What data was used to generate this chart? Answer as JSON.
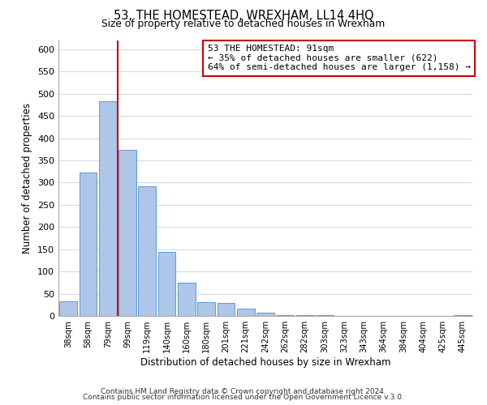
{
  "title": "53, THE HOMESTEAD, WREXHAM, LL14 4HQ",
  "subtitle": "Size of property relative to detached houses in Wrexham",
  "xlabel": "Distribution of detached houses by size in Wrexham",
  "ylabel": "Number of detached properties",
  "bin_labels": [
    "38sqm",
    "58sqm",
    "79sqm",
    "99sqm",
    "119sqm",
    "140sqm",
    "160sqm",
    "180sqm",
    "201sqm",
    "221sqm",
    "242sqm",
    "262sqm",
    "282sqm",
    "303sqm",
    "323sqm",
    "343sqm",
    "364sqm",
    "384sqm",
    "404sqm",
    "425sqm",
    "445sqm"
  ],
  "bar_heights": [
    32,
    323,
    483,
    374,
    292,
    144,
    75,
    31,
    29,
    17,
    8,
    2,
    1,
    1,
    0,
    0,
    0,
    0,
    0,
    0,
    2
  ],
  "bar_color": "#aec6e8",
  "bar_edge_color": "#5b9bd5",
  "vline_color": "#cc0000",
  "annotation_text": "53 THE HOMESTEAD: 91sqm\n← 35% of detached houses are smaller (622)\n64% of semi-detached houses are larger (1,158) →",
  "annotation_box_color": "#ffffff",
  "annotation_box_edge_color": "#cc0000",
  "ylim": [
    0,
    620
  ],
  "yticks": [
    0,
    50,
    100,
    150,
    200,
    250,
    300,
    350,
    400,
    450,
    500,
    550,
    600
  ],
  "footer_line1": "Contains HM Land Registry data © Crown copyright and database right 2024.",
  "footer_line2": "Contains public sector information licensed under the Open Government Licence v.3.0.",
  "background_color": "#ffffff",
  "grid_color": "#d0dce8"
}
